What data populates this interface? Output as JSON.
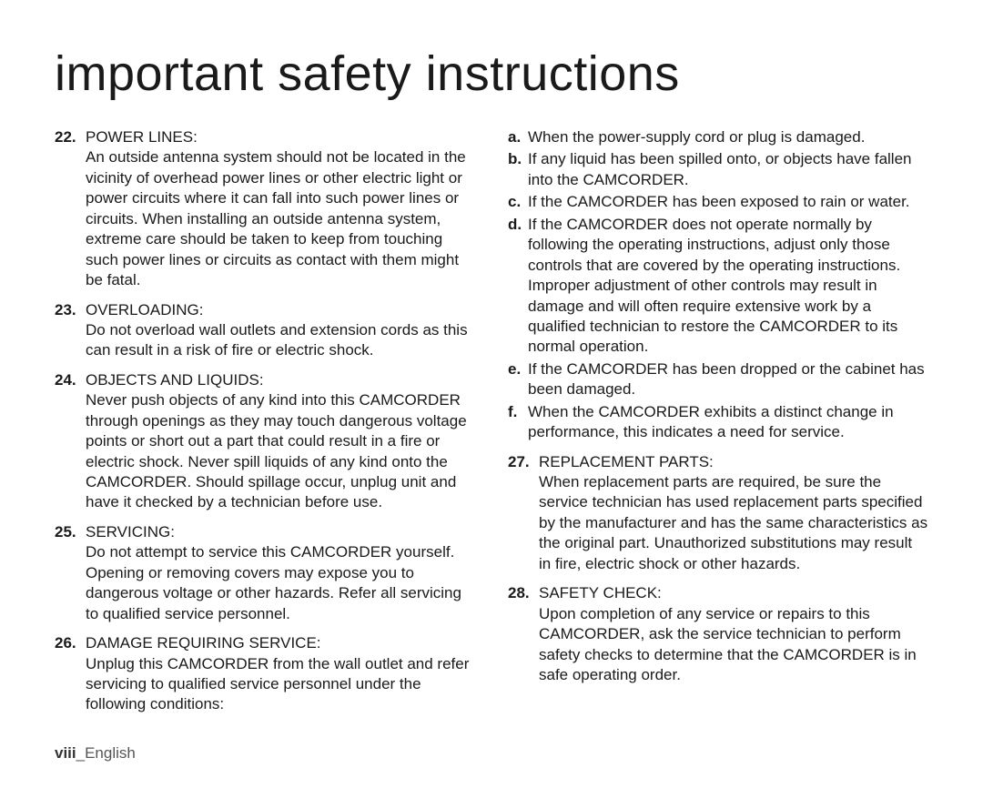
{
  "title": "important safety instructions",
  "left": [
    {
      "num": "22.",
      "label": "POWER LINES:",
      "text": "An outside antenna system should not be located in the vicinity of overhead power lines or other electric light or power circuits where it can fall into such power lines or circuits. When installing an outside antenna system, extreme care should be taken to keep from touching such power lines or circuits as contact with them might be fatal."
    },
    {
      "num": "23.",
      "label": "OVERLOADING:",
      "text": "Do not overload wall outlets and extension cords as this can result in a risk of fire or electric shock."
    },
    {
      "num": "24.",
      "label": "OBJECTS AND LIQUIDS:",
      "text": "Never push objects of any kind into this CAMCORDER through openings as they may touch dangerous voltage points or short out a part that could result in a fire or electric shock. Never spill liquids of any kind onto the CAMCORDER. Should spillage occur, unplug unit and have it checked by a technician before use."
    },
    {
      "num": "25.",
      "label": "SERVICING:",
      "text": "Do not attempt to service this CAMCORDER yourself. Opening or removing covers may expose you to dangerous voltage or other hazards. Refer all servicing to qualified service personnel."
    },
    {
      "num": "26.",
      "label": "DAMAGE REQUIRING SERVICE:",
      "text": "Unplug this CAMCORDER from the wall outlet and refer servicing to qualified service personnel under the following conditions:"
    }
  ],
  "right_sub": [
    {
      "letter": "a.",
      "text": "When the power-supply cord or plug is damaged."
    },
    {
      "letter": "b.",
      "text": "If any liquid has been spilled onto, or objects have fallen into the CAMCORDER."
    },
    {
      "letter": "c.",
      "text": "If the CAMCORDER has been exposed to rain or water."
    },
    {
      "letter": "d.",
      "text": "If the CAMCORDER does not operate normally by following the operating instructions, adjust only those controls that are covered by the operating instructions. Improper adjustment of other controls may result in damage and will often require extensive work by a qualified technician to restore the CAMCORDER to its normal operation."
    },
    {
      "letter": "e.",
      "text": "If the CAMCORDER has been dropped or the cabinet has been damaged."
    },
    {
      "letter": "f.",
      "text": "When the CAMCORDER exhibits a distinct change in performance, this indicates a need for service."
    }
  ],
  "right_items": [
    {
      "num": "27.",
      "label": "REPLACEMENT PARTS:",
      "text": "When replacement parts are required, be sure the service technician has used replacement parts specified by the manufacturer and has the same characteristics as the original part. Unauthorized substitutions may result in fire, electric shock or other hazards."
    },
    {
      "num": "28.",
      "label": "SAFETY CHECK:",
      "text": "Upon completion of any service or repairs to this CAMCORDER, ask the service technician to perform safety checks to determine that the CAMCORDER is in safe operating order."
    }
  ],
  "footer": {
    "page": "viii",
    "sep": "_",
    "lang": "English"
  }
}
